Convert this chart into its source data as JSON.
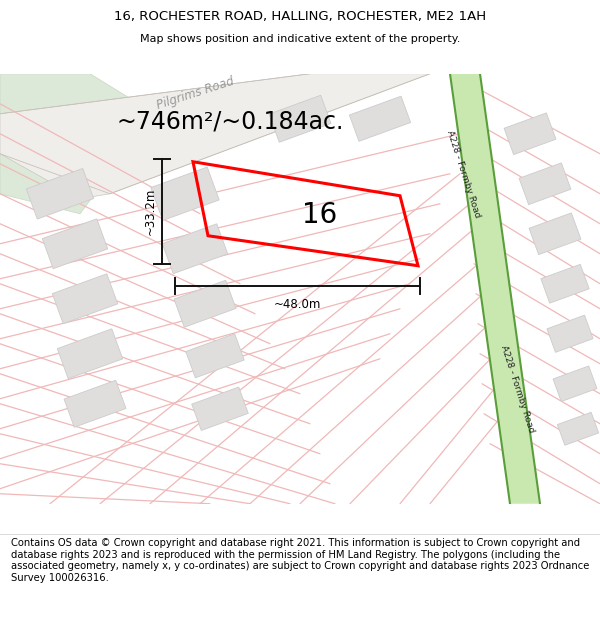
{
  "title_line1": "16, ROCHESTER ROAD, HALLING, ROCHESTER, ME2 1AH",
  "title_line2": "Map shows position and indicative extent of the property.",
  "area_text": "~746m²/~0.184ac.",
  "number_label": "16",
  "dim_width": "~48.0m",
  "dim_height": "~33.2m",
  "road_name_1": "Pilgrims Road",
  "road_name_2": "A228 - Formby Road",
  "footer_text": "Contains OS data © Crown copyright and database right 2021. This information is subject to Crown copyright and database rights 2023 and is reproduced with the permission of HM Land Registry. The polygons (including the associated geometry, namely x, y co-ordinates) are subject to Crown copyright and database rights 2023 Ordnance Survey 100026316.",
  "map_bg": "#f7f5f2",
  "green_area_color": "#dce8d8",
  "road_stroke": "#f0b8b8",
  "building_fill": "#e0dedd",
  "building_stroke": "#cccccc",
  "green_road_fill": "#a8d48a",
  "green_road_stroke": "#5a9e3a",
  "green_road_inner": "#c8e8b0",
  "highlight_color": "#ff0000",
  "dim_color": "#111111",
  "title_fontsize": 9.5,
  "footer_fontsize": 7.2,
  "area_fontsize": 17,
  "number_fontsize": 20
}
